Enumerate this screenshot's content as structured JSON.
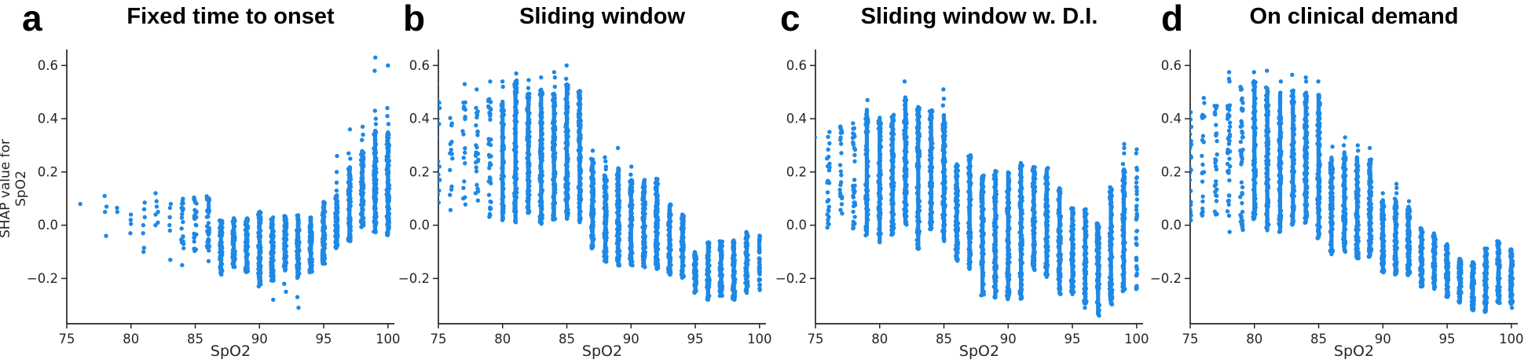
{
  "style": {
    "dot_color": "#1e88e5",
    "axis_color": "#262626",
    "background": "#ffffff"
  },
  "chart_data": [
    {
      "type": "scatter",
      "panel_label": "a",
      "title": "Fixed time to onset",
      "xlabel": "SpO2",
      "ylabel": "SHAP value for\nSpO2",
      "xlim": [
        75,
        100.5
      ],
      "ylim": [
        -0.37,
        0.66
      ],
      "grid": false,
      "legend": null,
      "xticks": {
        "values": [
          75,
          80,
          85,
          90,
          95,
          100
        ],
        "labels": [
          "75",
          "80",
          "85",
          "90",
          "95",
          "100"
        ]
      },
      "yticks": {
        "values": [
          -0.2,
          0.0,
          0.2,
          0.4,
          0.6
        ],
        "labels": [
          "−0.2",
          "0.0",
          "0.2",
          "0.4",
          "0.6"
        ]
      },
      "columns": [
        {
          "x": 76,
          "pts": [
            0.08
          ]
        },
        {
          "x": 78,
          "pts": [
            0.11,
            0.07,
            0.05,
            -0.04
          ]
        },
        {
          "x": 79,
          "pts": [
            0.065,
            0.05
          ]
        },
        {
          "x": 80,
          "pts": [
            0.04,
            0.02,
            0.005,
            -0.03
          ]
        },
        {
          "x": 81,
          "pts": [
            0.085,
            0.06,
            0.03,
            0.0,
            -0.03,
            -0.085,
            -0.1
          ]
        },
        {
          "x": 82,
          "pts": [
            0.12,
            0.09,
            0.07,
            0.05,
            0.04,
            0.01,
            0.0
          ]
        },
        {
          "x": 83,
          "pts": [
            0.08,
            0.065,
            0.03,
            0.0,
            -0.02,
            -0.13
          ]
        },
        {
          "x": 84,
          "min": -0.09,
          "max": 0.1,
          "n": 20,
          "extra": [
            -0.15
          ]
        },
        {
          "x": 85,
          "min": -0.1,
          "max": 0.105,
          "n": 26
        },
        {
          "x": 86,
          "min": -0.1,
          "max": 0.11,
          "n": 40,
          "extra": [
            -0.135
          ]
        },
        {
          "x": 87,
          "min": -0.19,
          "max": 0.02,
          "n": 60
        },
        {
          "x": 88,
          "min": -0.16,
          "max": 0.03,
          "n": 70
        },
        {
          "x": 89,
          "min": -0.18,
          "max": 0.03,
          "n": 70
        },
        {
          "x": 90,
          "min": -0.23,
          "max": 0.055,
          "n": 90
        },
        {
          "x": 91,
          "min": -0.21,
          "max": 0.03,
          "n": 85,
          "extra": [
            -0.28
          ]
        },
        {
          "x": 92,
          "min": -0.17,
          "max": 0.035,
          "n": 80,
          "extra": [
            -0.22,
            -0.25
          ]
        },
        {
          "x": 93,
          "min": -0.2,
          "max": 0.04,
          "n": 80,
          "extra": [
            -0.27,
            -0.31
          ]
        },
        {
          "x": 94,
          "min": -0.18,
          "max": 0.03,
          "n": 85
        },
        {
          "x": 95,
          "min": -0.145,
          "max": 0.09,
          "n": 75
        },
        {
          "x": 96,
          "min": -0.09,
          "max": 0.115,
          "n": 70,
          "extra": [
            0.26,
            0.2,
            0.16,
            0.13
          ]
        },
        {
          "x": 97,
          "min": -0.06,
          "max": 0.22,
          "n": 80,
          "extra": [
            0.36,
            0.27,
            0.25
          ]
        },
        {
          "x": 98,
          "min": -0.01,
          "max": 0.28,
          "n": 80,
          "extra": [
            0.37,
            0.34,
            0.32
          ]
        },
        {
          "x": 99,
          "min": -0.03,
          "max": 0.36,
          "n": 95,
          "extra": [
            0.63,
            0.58,
            0.43,
            0.4,
            0.38
          ]
        },
        {
          "x": 100,
          "min": -0.04,
          "max": 0.355,
          "n": 90,
          "extra": [
            0.6,
            0.44,
            0.41,
            0.38,
            0.02
          ]
        }
      ]
    },
    {
      "type": "scatter",
      "panel_label": "b",
      "title": "Sliding window",
      "xlabel": "SpO2",
      "ylabel": null,
      "xlim": [
        75,
        100.5
      ],
      "ylim": [
        -0.37,
        0.66
      ],
      "grid": false,
      "legend": null,
      "xticks": {
        "values": [
          75,
          80,
          85,
          90,
          95,
          100
        ],
        "labels": [
          "75",
          "80",
          "85",
          "90",
          "95",
          "100"
        ]
      },
      "yticks": {
        "values": [
          -0.2,
          0.0,
          0.2,
          0.4,
          0.6
        ],
        "labels": [
          "−0.2",
          "0.0",
          "0.2",
          "0.4",
          "0.6"
        ]
      },
      "columns": [
        {
          "x": 75,
          "pts": [
            0.53,
            0.47,
            0.46,
            0.44,
            0.4,
            0.38,
            0.33,
            0.24,
            0.22,
            0.19,
            0.17,
            0.16,
            0.13,
            0.115,
            0.085
          ]
        },
        {
          "x": 76,
          "min": 0.03,
          "max": 0.42,
          "n": 14
        },
        {
          "x": 77,
          "min": 0.01,
          "max": 0.47,
          "n": 18,
          "extra": [
            0.53
          ]
        },
        {
          "x": 78,
          "min": 0.075,
          "max": 0.46,
          "n": 26,
          "extra": [
            0.51
          ]
        },
        {
          "x": 79,
          "min": 0.03,
          "max": 0.475,
          "n": 42,
          "extra": [
            0.54
          ]
        },
        {
          "x": 80,
          "min": 0.015,
          "max": 0.47,
          "n": 55,
          "extra": [
            0.54,
            0.52
          ]
        },
        {
          "x": 81,
          "min": 0.01,
          "max": 0.545,
          "n": 70,
          "extra": [
            0.57
          ]
        },
        {
          "x": 82,
          "min": 0.04,
          "max": 0.5,
          "n": 85,
          "extra": [
            0.545,
            0.515
          ]
        },
        {
          "x": 83,
          "min": 0.005,
          "max": 0.515,
          "n": 95,
          "extra": [
            0.555
          ]
        },
        {
          "x": 84,
          "min": 0.02,
          "max": 0.5,
          "n": 95,
          "extra": [
            0.575,
            0.555,
            0.52
          ]
        },
        {
          "x": 85,
          "min": 0.02,
          "max": 0.535,
          "n": 105,
          "extra": [
            0.6,
            0.55
          ]
        },
        {
          "x": 86,
          "min": 0.005,
          "max": 0.505,
          "n": 105
        },
        {
          "x": 87,
          "min": -0.09,
          "max": 0.25,
          "n": 90,
          "extra": [
            0.28
          ]
        },
        {
          "x": 88,
          "min": -0.14,
          "max": 0.19,
          "n": 90,
          "extra": [
            0.255,
            0.24,
            0.22,
            0.21
          ]
        },
        {
          "x": 89,
          "min": -0.155,
          "max": 0.22,
          "n": 90,
          "extra": [
            0.29
          ]
        },
        {
          "x": 90,
          "min": -0.155,
          "max": 0.17,
          "n": 90,
          "extra": [
            0.22,
            0.19
          ]
        },
        {
          "x": 91,
          "min": -0.16,
          "max": 0.17,
          "n": 85
        },
        {
          "x": 92,
          "min": -0.17,
          "max": 0.175,
          "n": 85
        },
        {
          "x": 93,
          "min": -0.19,
          "max": 0.08,
          "n": 80
        },
        {
          "x": 94,
          "min": -0.2,
          "max": 0.045,
          "n": 80
        },
        {
          "x": 95,
          "min": -0.255,
          "max": -0.1,
          "n": 55
        },
        {
          "x": 96,
          "min": -0.28,
          "max": -0.06,
          "n": 65
        },
        {
          "x": 97,
          "min": -0.27,
          "max": -0.06,
          "n": 65
        },
        {
          "x": 98,
          "min": -0.28,
          "max": -0.055,
          "n": 65
        },
        {
          "x": 99,
          "min": -0.26,
          "max": -0.025,
          "n": 60
        },
        {
          "x": 100,
          "min": -0.25,
          "max": -0.035,
          "n": 40,
          "w": 0.6
        }
      ]
    },
    {
      "type": "scatter",
      "panel_label": "c",
      "title": "Sliding window w. D.I.",
      "xlabel": "SpO2",
      "ylabel": null,
      "xlim": [
        75,
        100.5
      ],
      "ylim": [
        -0.37,
        0.66
      ],
      "grid": false,
      "legend": null,
      "xticks": {
        "values": [
          75,
          80,
          85,
          90,
          95,
          100
        ],
        "labels": [
          "75",
          "80",
          "85",
          "90",
          "95",
          "100"
        ]
      },
      "yticks": {
        "values": [
          -0.2,
          0.0,
          0.2,
          0.4,
          0.6
        ],
        "labels": [
          "−0.2",
          "0.0",
          "0.2",
          "0.4",
          "0.6"
        ]
      },
      "columns": [
        {
          "x": 75,
          "pts": [
            0.33
          ]
        },
        {
          "x": 76,
          "min": -0.01,
          "max": 0.36,
          "n": 26
        },
        {
          "x": 77,
          "min": 0.035,
          "max": 0.375,
          "n": 24
        },
        {
          "x": 78,
          "min": -0.02,
          "max": 0.385,
          "n": 36
        },
        {
          "x": 79,
          "min": -0.04,
          "max": 0.44,
          "n": 55,
          "extra": [
            0.47
          ]
        },
        {
          "x": 80,
          "min": -0.07,
          "max": 0.41,
          "n": 65
        },
        {
          "x": 81,
          "min": -0.04,
          "max": 0.415,
          "n": 75
        },
        {
          "x": 82,
          "min": 0.0,
          "max": 0.47,
          "n": 85,
          "extra": [
            0.54,
            0.48
          ]
        },
        {
          "x": 83,
          "min": -0.095,
          "max": 0.45,
          "n": 85
        },
        {
          "x": 84,
          "min": -0.015,
          "max": 0.435,
          "n": 85
        },
        {
          "x": 85,
          "min": -0.06,
          "max": 0.42,
          "n": 100,
          "extra": [
            0.51,
            0.475,
            0.45
          ]
        },
        {
          "x": 86,
          "min": -0.135,
          "max": 0.235,
          "n": 85
        },
        {
          "x": 87,
          "min": -0.17,
          "max": 0.265,
          "n": 85
        },
        {
          "x": 88,
          "min": -0.265,
          "max": 0.19,
          "n": 90
        },
        {
          "x": 89,
          "min": -0.275,
          "max": 0.21,
          "n": 90
        },
        {
          "x": 90,
          "min": -0.28,
          "max": 0.205,
          "n": 90
        },
        {
          "x": 91,
          "min": -0.28,
          "max": 0.235,
          "n": 95
        },
        {
          "x": 92,
          "min": -0.17,
          "max": 0.22,
          "n": 85
        },
        {
          "x": 93,
          "min": -0.2,
          "max": 0.215,
          "n": 85
        },
        {
          "x": 94,
          "min": -0.26,
          "max": 0.145,
          "n": 85
        },
        {
          "x": 95,
          "min": -0.265,
          "max": 0.065,
          "n": 75
        },
        {
          "x": 96,
          "min": -0.3,
          "max": 0.06,
          "n": 75,
          "extra": [
            -0.31
          ]
        },
        {
          "x": 97,
          "min": -0.34,
          "max": 0.01,
          "n": 85
        },
        {
          "x": 98,
          "min": -0.3,
          "max": 0.145,
          "n": 85
        },
        {
          "x": 99,
          "min": -0.25,
          "max": 0.21,
          "n": 75,
          "extra": [
            0.305,
            0.29,
            0.27,
            0.23
          ]
        },
        {
          "x": 100,
          "min": -0.24,
          "max": 0.23,
          "n": 40,
          "w": 0.6,
          "extra": [
            0.285,
            0.27
          ]
        }
      ]
    },
    {
      "type": "scatter",
      "panel_label": "d",
      "title": "On clinical demand",
      "xlabel": "SpO2",
      "ylabel": null,
      "xlim": [
        75,
        100.5
      ],
      "ylim": [
        -0.37,
        0.66
      ],
      "grid": false,
      "legend": null,
      "xticks": {
        "values": [
          75,
          80,
          85,
          90,
          95,
          100
        ],
        "labels": [
          "75",
          "80",
          "85",
          "90",
          "95",
          "100"
        ]
      },
      "yticks": {
        "values": [
          -0.2,
          0.0,
          0.2,
          0.4,
          0.6
        ],
        "labels": [
          "−0.2",
          "0.0",
          "0.2",
          "0.4",
          "0.6"
        ]
      },
      "columns": [
        {
          "x": 75,
          "min": 0.01,
          "max": 0.44,
          "n": 28
        },
        {
          "x": 76,
          "min": 0.035,
          "max": 0.48,
          "n": 22
        },
        {
          "x": 77,
          "min": 0.02,
          "max": 0.455,
          "n": 28
        },
        {
          "x": 78,
          "min": -0.03,
          "max": 0.46,
          "n": 42,
          "extra": [
            0.575,
            0.55,
            0.54
          ]
        },
        {
          "x": 79,
          "min": -0.02,
          "max": 0.52,
          "n": 48
        },
        {
          "x": 80,
          "min": 0.02,
          "max": 0.545,
          "n": 65,
          "extra": [
            0.575
          ]
        },
        {
          "x": 81,
          "min": -0.025,
          "max": 0.52,
          "n": 85,
          "extra": [
            0.58
          ]
        },
        {
          "x": 82,
          "min": -0.03,
          "max": 0.5,
          "n": 85,
          "extra": [
            0.54
          ]
        },
        {
          "x": 83,
          "min": 0.0,
          "max": 0.51,
          "n": 85,
          "extra": [
            0.565
          ]
        },
        {
          "x": 84,
          "min": 0.005,
          "max": 0.5,
          "n": 95,
          "extra": [
            0.555,
            0.54
          ]
        },
        {
          "x": 85,
          "min": -0.05,
          "max": 0.49,
          "n": 105,
          "extra": [
            0.54
          ]
        },
        {
          "x": 86,
          "min": -0.115,
          "max": 0.26,
          "n": 85,
          "extra": [
            0.295
          ]
        },
        {
          "x": 87,
          "min": -0.1,
          "max": 0.28,
          "n": 85,
          "extra": [
            0.33,
            0.3
          ]
        },
        {
          "x": 88,
          "min": -0.13,
          "max": 0.26,
          "n": 85,
          "extra": [
            0.3,
            0.28
          ]
        },
        {
          "x": 89,
          "min": -0.12,
          "max": 0.25,
          "n": 85,
          "extra": [
            0.29
          ]
        },
        {
          "x": 90,
          "min": -0.18,
          "max": 0.1,
          "n": 85,
          "extra": [
            0.12
          ]
        },
        {
          "x": 91,
          "min": -0.185,
          "max": 0.1,
          "n": 85,
          "extra": [
            0.155,
            0.14,
            0.12
          ]
        },
        {
          "x": 92,
          "min": -0.19,
          "max": 0.07,
          "n": 85,
          "extra": [
            0.09
          ]
        },
        {
          "x": 93,
          "min": -0.235,
          "max": -0.01,
          "n": 70
        },
        {
          "x": 94,
          "min": -0.245,
          "max": -0.03,
          "n": 70
        },
        {
          "x": 95,
          "min": -0.27,
          "max": -0.065,
          "n": 65
        },
        {
          "x": 96,
          "min": -0.295,
          "max": -0.12,
          "n": 60
        },
        {
          "x": 97,
          "min": -0.32,
          "max": -0.135,
          "n": 60
        },
        {
          "x": 98,
          "min": -0.33,
          "max": -0.085,
          "n": 70
        },
        {
          "x": 99,
          "min": -0.295,
          "max": -0.055,
          "n": 70
        },
        {
          "x": 100,
          "min": -0.295,
          "max": -0.085,
          "n": 65,
          "extra": [
            -0.31
          ]
        }
      ]
    }
  ]
}
